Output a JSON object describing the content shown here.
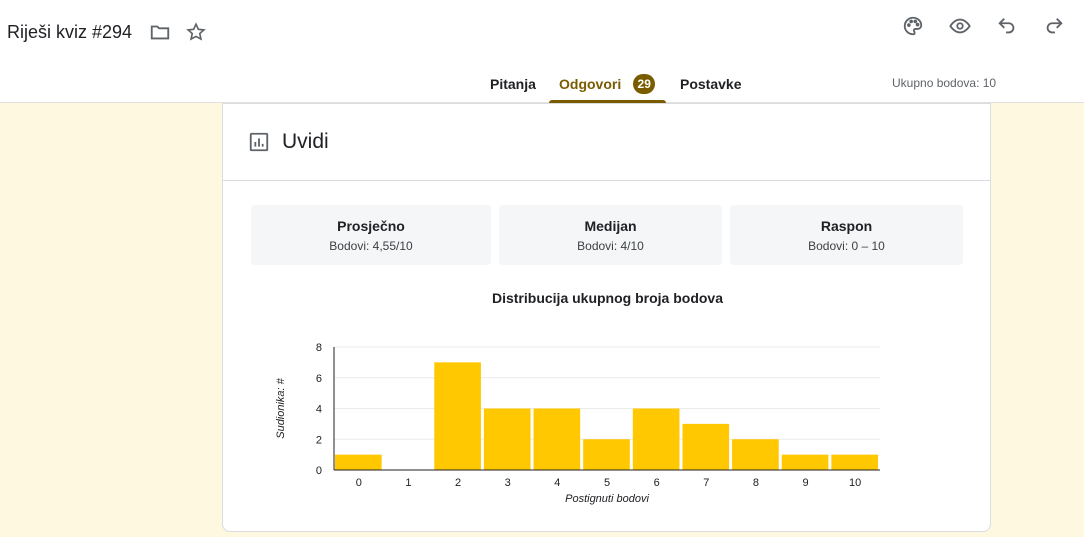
{
  "header": {
    "title": "Riješi kviz #294",
    "icons": [
      "folder-icon",
      "star-icon",
      "palette-icon",
      "eye-icon",
      "undo-icon",
      "redo-icon"
    ]
  },
  "tabs": [
    {
      "label": "Pitanja"
    },
    {
      "label": "Odgovori",
      "badge": "29",
      "active": true
    },
    {
      "label": "Postavke"
    }
  ],
  "total_points": "Ukupno bodova: 10",
  "insights": {
    "title": "Uvidi",
    "stats": [
      {
        "label": "Prosječno",
        "value": "Bodovi: 4,55/10"
      },
      {
        "label": "Medijan",
        "value": "Bodovi: 4/10"
      },
      {
        "label": "Raspon",
        "value": "Bodovi: 0 – 10"
      }
    ]
  },
  "colors": {
    "accent": "#7a5c00",
    "bar": "#ffc800",
    "background": "#fff8e1"
  },
  "chart_data": {
    "type": "bar",
    "title": "Distribucija ukupnog broja bodova",
    "xlabel": "Postignuti bodovi",
    "ylabel": "Sudionika: #",
    "categories": [
      "0",
      "1",
      "2",
      "3",
      "4",
      "5",
      "6",
      "7",
      "8",
      "9",
      "10"
    ],
    "values": [
      1,
      0,
      7,
      4,
      4,
      2,
      4,
      3,
      2,
      1,
      1
    ],
    "yticks": [
      "0",
      "2",
      "4",
      "6",
      "8"
    ],
    "ylim": [
      0,
      8
    ],
    "grid": true,
    "legend": "none"
  }
}
